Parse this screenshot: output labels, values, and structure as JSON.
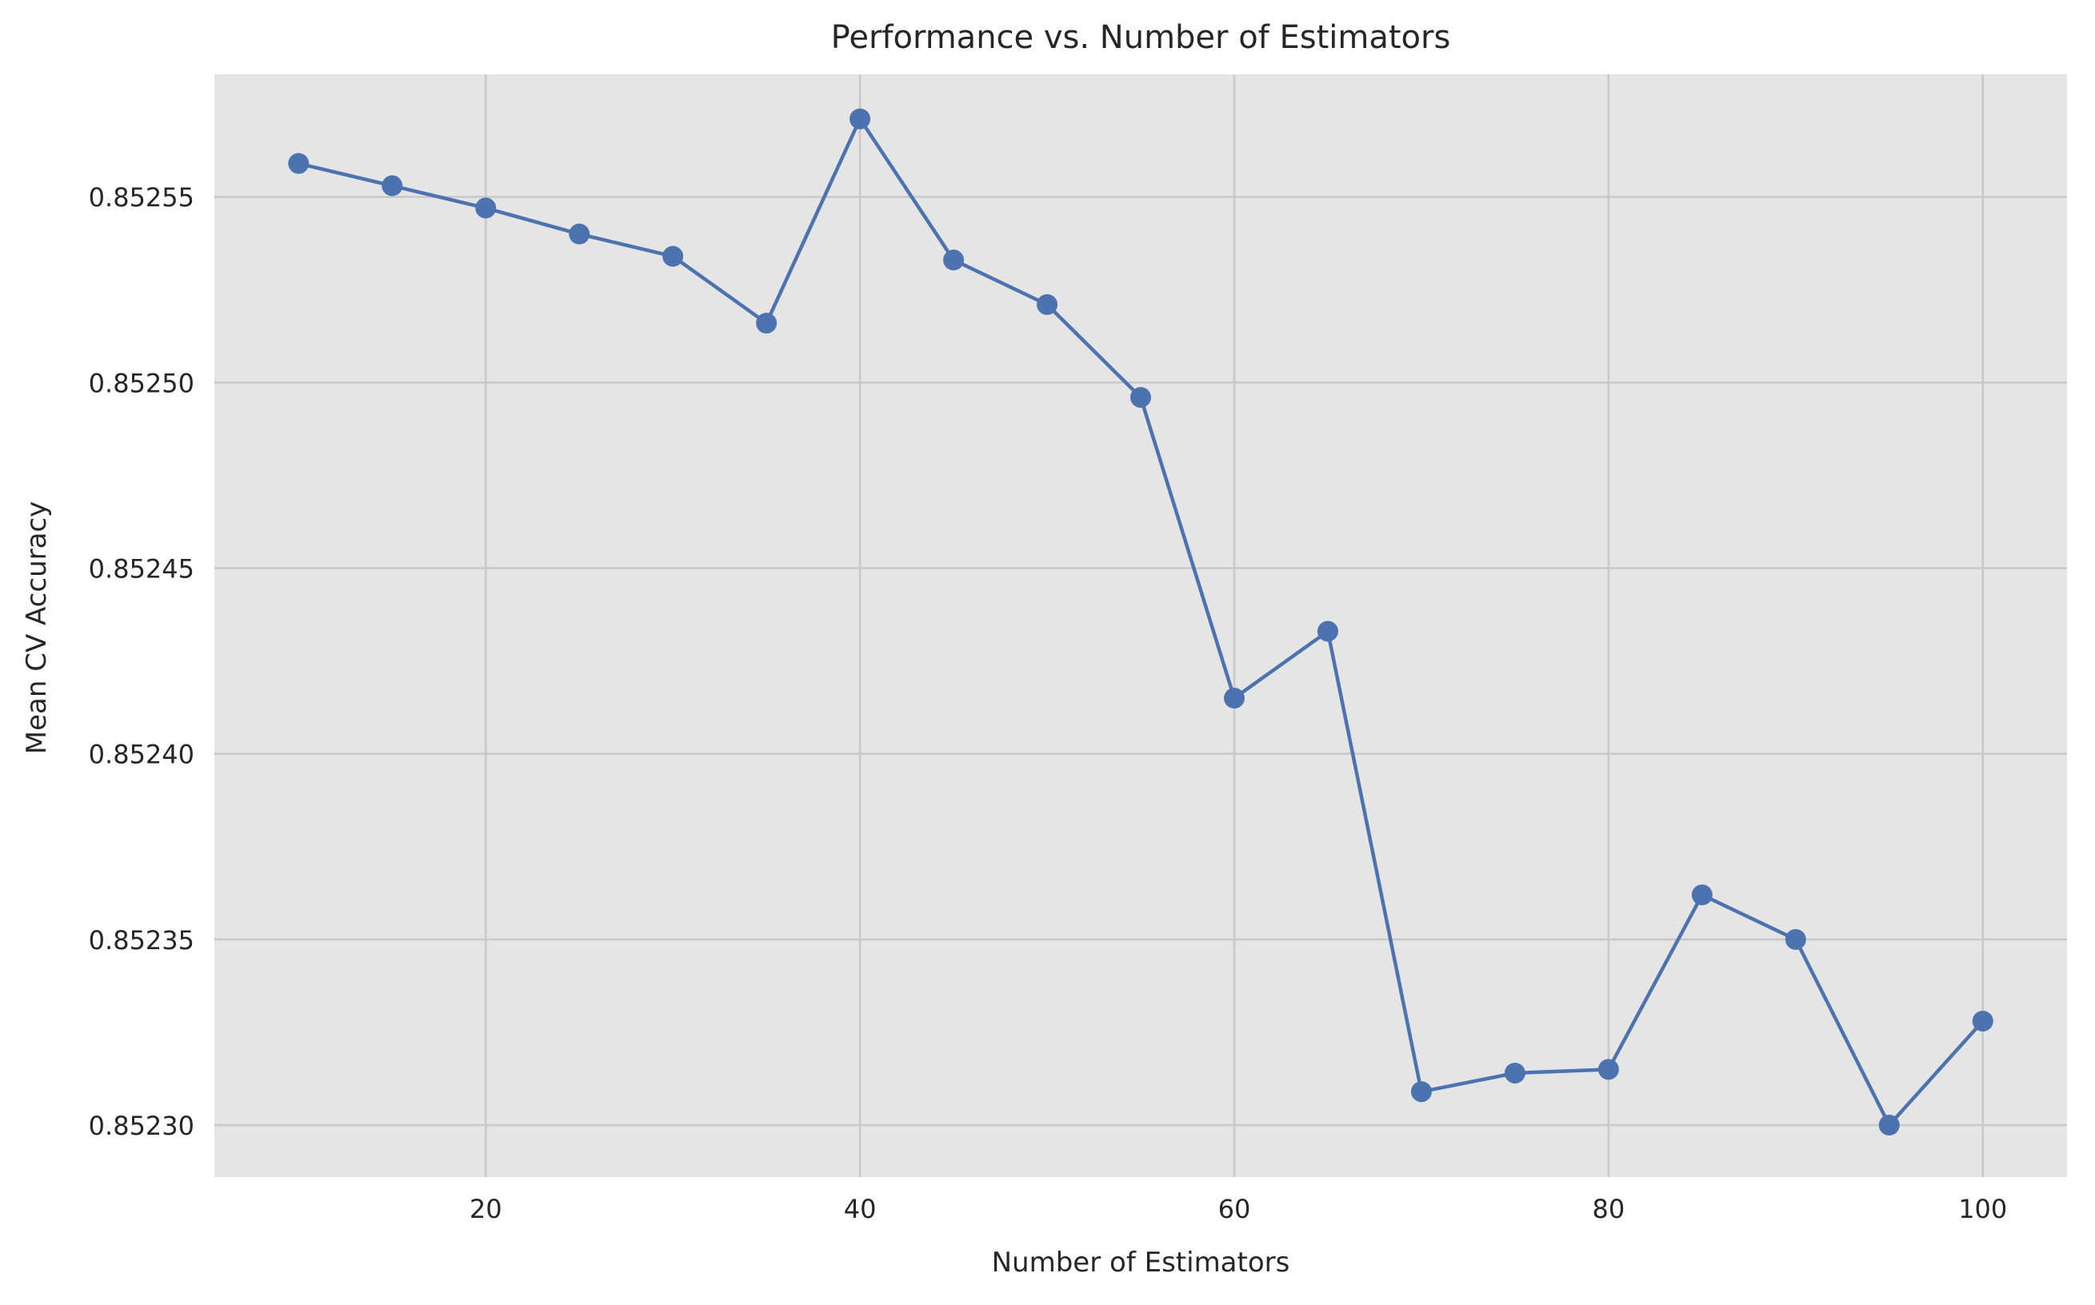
{
  "chart_data": {
    "type": "line",
    "title": "Performance vs. Number of Estimators",
    "xlabel": "Number of Estimators",
    "ylabel": "Mean CV Accuracy",
    "xlim": [
      5.5,
      104.5
    ],
    "ylim": [
      0.852286,
      0.852583
    ],
    "xticks": [
      20,
      40,
      60,
      80,
      100
    ],
    "xtick_labels": [
      "20",
      "40",
      "60",
      "80",
      "100"
    ],
    "yticks": [
      0.8523,
      0.85235,
      0.8524,
      0.85245,
      0.8525,
      0.85255
    ],
    "ytick_labels": [
      "0.85230",
      "0.85235",
      "0.85240",
      "0.85245",
      "0.85250",
      "0.85255"
    ],
    "grid": true,
    "colors": {
      "plot_background": "#e5e5e5",
      "grid": "#c8c8c8",
      "series": "#4c72b0"
    },
    "series": [
      {
        "x": [
          10,
          15,
          20,
          25,
          30,
          35,
          40,
          45,
          50,
          55,
          60,
          65,
          70,
          75,
          80,
          85,
          90,
          95,
          100
        ],
        "values": [
          0.852559,
          0.852553,
          0.852547,
          0.85254,
          0.852534,
          0.852516,
          0.852571,
          0.852533,
          0.852521,
          0.852496,
          0.852415,
          0.852433,
          0.852309,
          0.852314,
          0.852315,
          0.852362,
          0.85235,
          0.8523,
          0.852328
        ]
      }
    ]
  }
}
